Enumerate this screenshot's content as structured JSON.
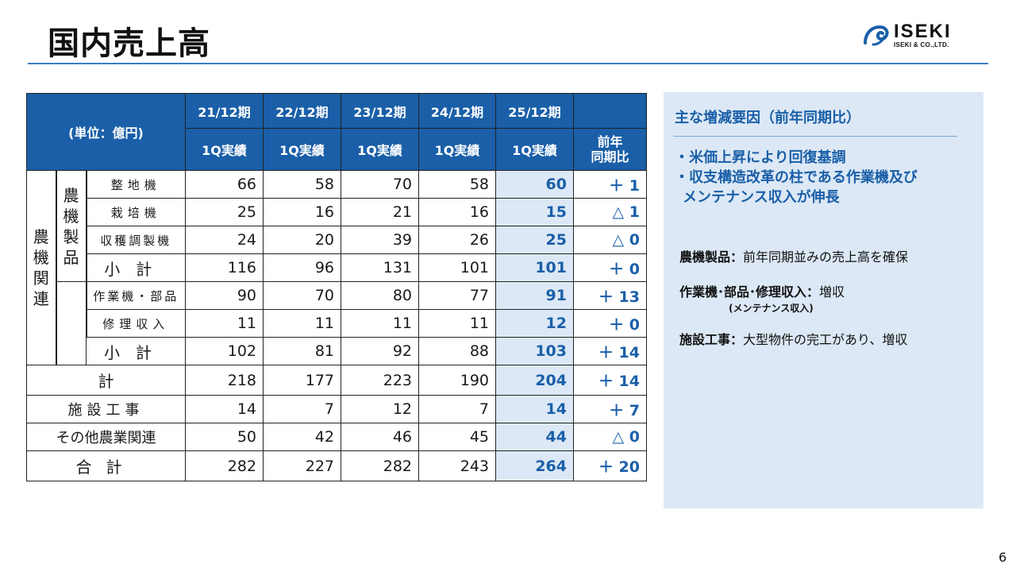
{
  "title": "国内売上高",
  "logo": {
    "name": "ISEKI",
    "sub": "ISEKI & CO.,LTD."
  },
  "table": {
    "unit": "(単位：億円)",
    "periods": [
      "21/12期",
      "22/12期",
      "23/12期",
      "24/12期",
      "25/12期"
    ],
    "col_label": "1Q実績",
    "yoy_label_1": "前年",
    "yoy_label_2": "同期比",
    "group_main": "農機関連",
    "group_products": "農機製品",
    "rows": [
      {
        "label": "整地機",
        "values": [
          "66",
          "58",
          "70",
          "58",
          "60"
        ],
        "yoy": "＋ 1"
      },
      {
        "label": "栽培機",
        "values": [
          "25",
          "16",
          "21",
          "16",
          "15"
        ],
        "yoy": "△ 1"
      },
      {
        "label": "収穫調製機",
        "values": [
          "24",
          "20",
          "39",
          "26",
          "25"
        ],
        "yoy": "△ 0"
      },
      {
        "label": "小計",
        "values": [
          "116",
          "96",
          "131",
          "101",
          "101"
        ],
        "yoy": "＋ 0"
      },
      {
        "label": "作業機・部品",
        "values": [
          "90",
          "70",
          "80",
          "77",
          "91"
        ],
        "yoy": "＋ 13"
      },
      {
        "label": "修理収入",
        "values": [
          "11",
          "11",
          "11",
          "11",
          "12"
        ],
        "yoy": "＋ 0"
      },
      {
        "label": "小計",
        "values": [
          "102",
          "81",
          "92",
          "88",
          "103"
        ],
        "yoy": "＋ 14"
      },
      {
        "label": "計",
        "values": [
          "218",
          "177",
          "223",
          "190",
          "204"
        ],
        "yoy": "＋ 14"
      },
      {
        "label": "施設工事",
        "values": [
          "14",
          "7",
          "12",
          "7",
          "14"
        ],
        "yoy": "＋ 7"
      },
      {
        "label": "その他農業関連",
        "values": [
          "50",
          "42",
          "46",
          "45",
          "44"
        ],
        "yoy": "△ 0"
      },
      {
        "label": "合計",
        "values": [
          "282",
          "227",
          "282",
          "243",
          "264"
        ],
        "yoy": "＋ 20"
      }
    ]
  },
  "panel": {
    "title": "主な増減要因（前年同期比）",
    "bullet1": "・米価上昇により回復基調",
    "bullet2": "・収支構造改革の柱である作業機及び",
    "bullet2b": "メンテナンス収入が伸長",
    "f1_label": "農機製品：",
    "f1_text": "前年同期並みの売上高を確保",
    "f2_label": "作業機･部品･修理収入：",
    "f2_text": "増収",
    "f2_note": "(メンテナンス収入)",
    "f3_label": "施設工事：",
    "f3_text": "大型物件の完工があり、増収"
  },
  "page_number": "6",
  "colors": {
    "brand_blue": "#1a5fa8",
    "panel_bg": "#dce8f5",
    "rule": "#3a7dc4"
  }
}
